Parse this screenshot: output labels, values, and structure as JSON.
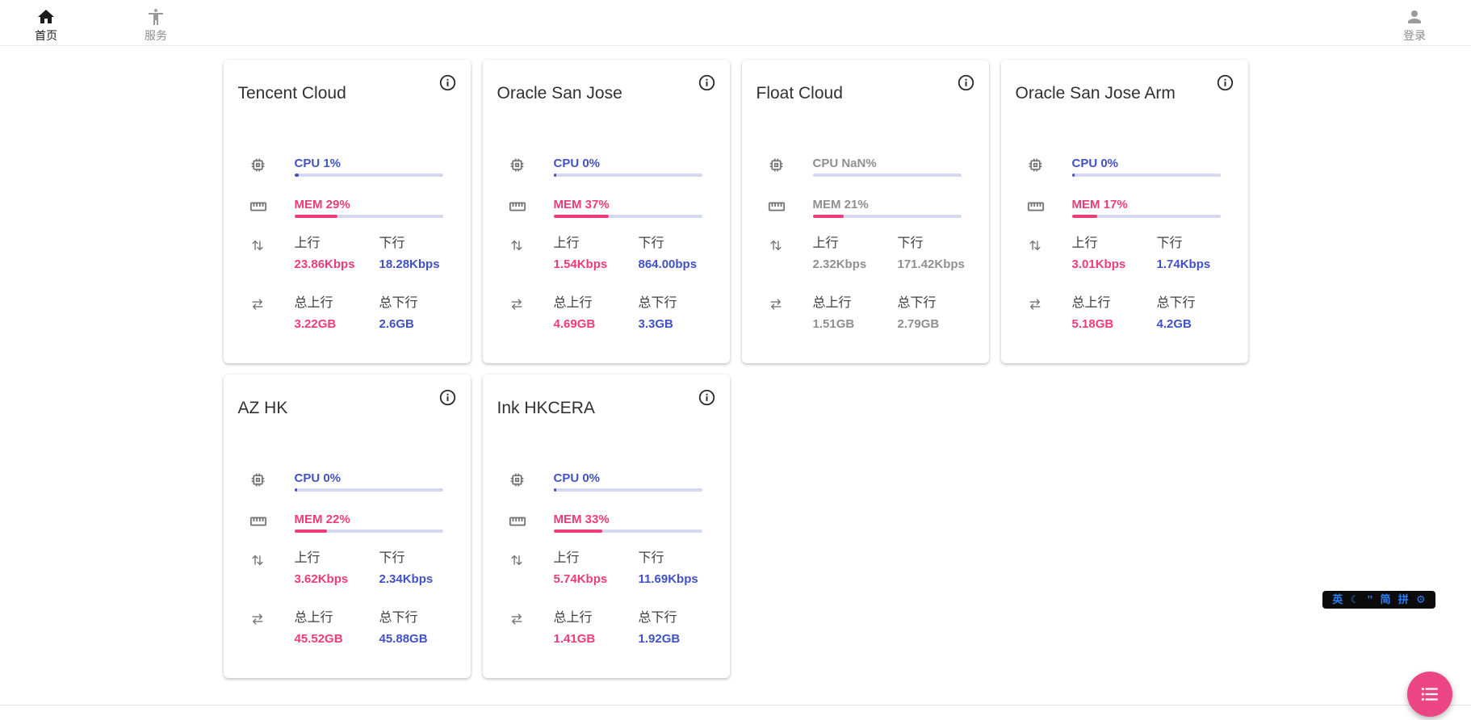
{
  "navbar": {
    "items": [
      {
        "label": "首页",
        "icon": "home-icon",
        "active": true
      },
      {
        "label": "服务",
        "icon": "accessibility-icon",
        "active": false
      }
    ],
    "login": {
      "label": "登录",
      "icon": "person-icon"
    }
  },
  "card_labels": {
    "up": "上行",
    "down": "下行",
    "total_up": "总上行",
    "total_down": "总下行"
  },
  "servers": [
    {
      "name": "Tencent Cloud",
      "cpu_text": "CPU 1%",
      "cpu_pct": 1,
      "mem_text": "MEM 29%",
      "mem_pct": 29,
      "up": "23.86Kbps",
      "down": "18.28Kbps",
      "total_up": "3.22GB",
      "total_down": "2.6GB",
      "online": true
    },
    {
      "name": "Oracle San Jose",
      "cpu_text": "CPU 0%",
      "cpu_pct": 0,
      "mem_text": "MEM 37%",
      "mem_pct": 37,
      "up": "1.54Kbps",
      "down": "864.00bps",
      "total_up": "4.69GB",
      "total_down": "3.3GB",
      "online": true
    },
    {
      "name": "Float Cloud",
      "cpu_text": "CPU NaN%",
      "cpu_pct": null,
      "mem_text": "MEM 21%",
      "mem_pct": 21,
      "up": "2.32Kbps",
      "down": "171.42Kbps",
      "total_up": "1.51GB",
      "total_down": "2.79GB",
      "online": false
    },
    {
      "name": "Oracle San Jose Arm",
      "cpu_text": "CPU 0%",
      "cpu_pct": 0,
      "mem_text": "MEM 17%",
      "mem_pct": 17,
      "up": "3.01Kbps",
      "down": "1.74Kbps",
      "total_up": "5.18GB",
      "total_down": "4.2GB",
      "online": true
    },
    {
      "name": "AZ HK",
      "cpu_text": "CPU 0%",
      "cpu_pct": 0,
      "mem_text": "MEM 22%",
      "mem_pct": 22,
      "up": "3.62Kbps",
      "down": "2.34Kbps",
      "total_up": "45.52GB",
      "total_down": "45.88GB",
      "online": true
    },
    {
      "name": "Ink HKCERA",
      "cpu_text": "CPU 0%",
      "cpu_pct": 0,
      "mem_text": "MEM 33%",
      "mem_pct": 33,
      "up": "5.74Kbps",
      "down": "11.69Kbps",
      "total_up": "1.41GB",
      "total_down": "1.92GB",
      "online": true
    }
  ],
  "ime_toolbar": {
    "items": [
      "英",
      "☾",
      "’’",
      "简",
      "拼",
      "⚙"
    ]
  },
  "colors": {
    "pink": "#ee3c78",
    "blue": "#4151c6",
    "track": "#d4d8f0",
    "gray": "#8f8f8f",
    "ime-blue": "#2d7ff0",
    "fab": "#ec4584"
  }
}
